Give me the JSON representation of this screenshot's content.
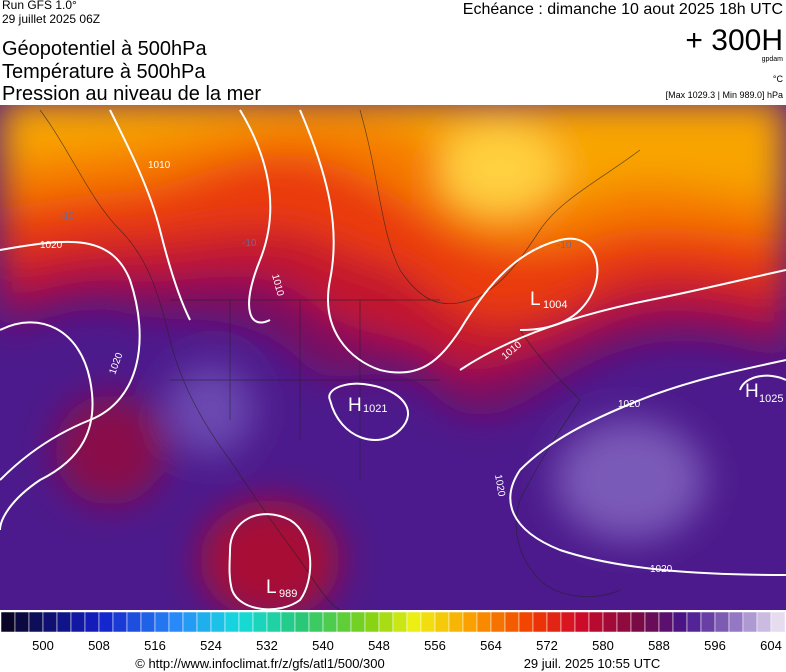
{
  "header": {
    "run": "Run GFS 1.0°",
    "date": "29 juillet 2025 06Z",
    "titles": [
      "Géopotentiel à 500hPa",
      "Température à 500hPa",
      "Pression au niveau de la mer"
    ],
    "echeance": "Echéance : dimanche 10 aout 2025 18h UTC",
    "forecast": "+ 300H",
    "unit_geo": "gpdam",
    "unit_temp": "°C",
    "pressure_range": "[Max 1029.3 | Min 989.0] hPa"
  },
  "map": {
    "isobar_labels": [
      "1010",
      "1020",
      "1010",
      "1010",
      "1020",
      "1020",
      "1020",
      "1020"
    ],
    "temp_labels": [
      "-10",
      "-10",
      "-10"
    ],
    "centers": [
      {
        "symbol": "L",
        "value": "1004"
      },
      {
        "symbol": "H",
        "value": "1021"
      },
      {
        "symbol": "H",
        "value": "1025"
      },
      {
        "symbol": "L",
        "value": "989"
      }
    ]
  },
  "colorbar": {
    "labels": [
      "500",
      "508",
      "516",
      "524",
      "532",
      "540",
      "548",
      "556",
      "564",
      "572",
      "580",
      "588",
      "596",
      "604"
    ]
  },
  "footer": {
    "url": "© http://www.infoclimat.fr/z/gfs/atl1/500/300",
    "timestamp": "29 juil. 2025 10:55 UTC"
  }
}
